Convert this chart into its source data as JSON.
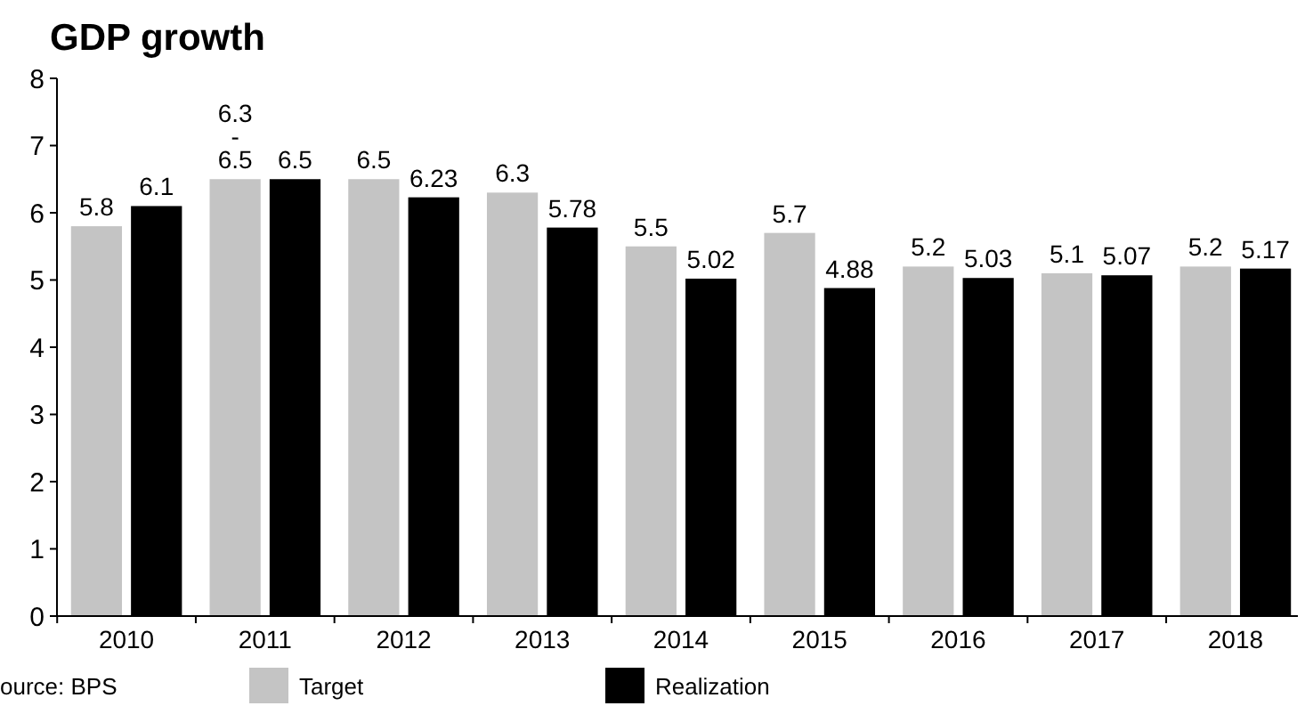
{
  "chart_data": {
    "type": "bar",
    "title": "GDP growth",
    "categories": [
      "2010",
      "2011",
      "2012",
      "2013",
      "2014",
      "2015",
      "2016",
      "2017",
      "2018"
    ],
    "series": [
      {
        "name": "Target",
        "color": "#c4c4c4",
        "values": [
          5.8,
          6.5,
          6.5,
          6.3,
          5.5,
          5.7,
          5.2,
          5.1,
          5.2
        ],
        "value_labels": [
          "5.8",
          "6.5",
          "6.5",
          "6.3",
          "5.5",
          "5.7",
          "5.2",
          "5.1",
          "5.2"
        ]
      },
      {
        "name": "Realization",
        "color": "#000000",
        "values": [
          6.1,
          6.5,
          6.23,
          5.78,
          5.02,
          4.88,
          5.03,
          5.07,
          5.17
        ],
        "value_labels": [
          "6.1",
          "6.5",
          "6.23",
          "5.78",
          "5.02",
          "4.88",
          "5.03",
          "5.07",
          "5.17"
        ]
      }
    ],
    "ylim": [
      0,
      8
    ],
    "yticks": [
      0,
      1,
      2,
      3,
      4,
      5,
      6,
      7,
      8
    ],
    "grid": false,
    "legend": "bottom",
    "annotations": [
      "ource: BPS",
      {
        "text": "6.3 -",
        "x": "2011",
        "y": 6.5
      }
    ]
  }
}
